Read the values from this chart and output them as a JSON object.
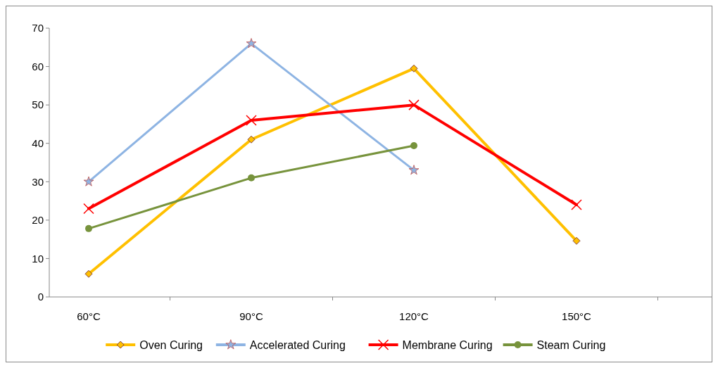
{
  "chart_data": {
    "type": "line",
    "categories": [
      "60°C",
      "90°C",
      "120°C",
      "150°C"
    ],
    "series": [
      {
        "name": "Oven Curing",
        "color": "#ffc000",
        "marker": "diamond",
        "values": [
          6,
          41,
          59.5,
          14.6
        ]
      },
      {
        "name": "Accelerated Curing",
        "color": "#8eb4e3",
        "marker": "star",
        "values": [
          30,
          66,
          33,
          null
        ]
      },
      {
        "name": "Membrane Curing",
        "color": "#ff0000",
        "marker": "cross",
        "values": [
          23,
          46,
          50,
          24
        ]
      },
      {
        "name": "Steam Curing",
        "color": "#77933c",
        "marker": "circle",
        "values": [
          17.8,
          31,
          39.4,
          null
        ]
      }
    ],
    "ylim": [
      0,
      70
    ],
    "yticks": [
      0,
      10,
      20,
      30,
      40,
      50,
      60,
      70
    ],
    "grid": false,
    "legend": "bottom"
  }
}
